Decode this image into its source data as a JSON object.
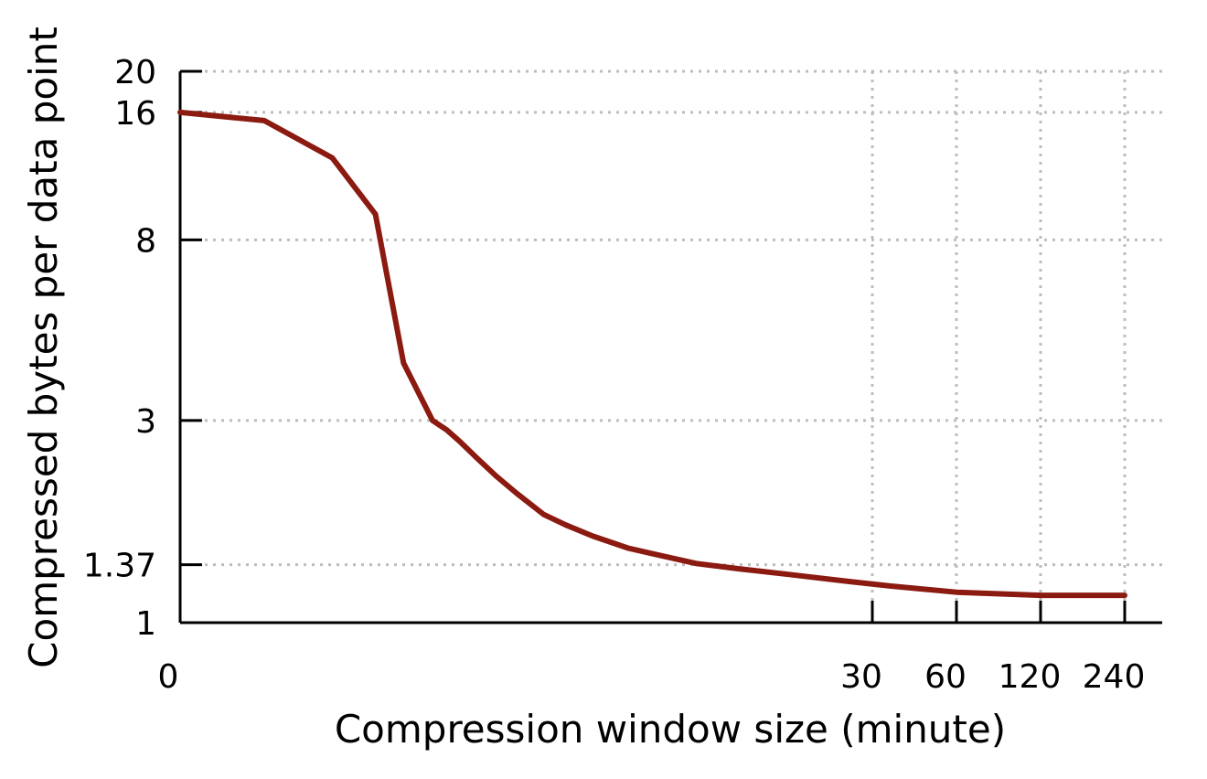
{
  "chart_data": {
    "type": "line",
    "xlabel": "Compression window size (minute)",
    "ylabel": "Compressed bytes per data point",
    "x_scale": "log",
    "y_scale": "log",
    "xlim": [
      0.1,
      350
    ],
    "ylim": [
      1,
      20
    ],
    "x_ticks": [
      {
        "value": 0.1,
        "label": "0"
      },
      {
        "value": 30,
        "label": "30"
      },
      {
        "value": 60,
        "label": "60"
      },
      {
        "value": 120,
        "label": "120"
      },
      {
        "value": 240,
        "label": "240"
      }
    ],
    "y_ticks": [
      {
        "value": 1,
        "label": "1"
      },
      {
        "value": 1.37,
        "label": "1.37"
      },
      {
        "value": 3,
        "label": "3"
      },
      {
        "value": 8,
        "label": "8"
      },
      {
        "value": 16,
        "label": "16"
      },
      {
        "value": 20,
        "label": "20"
      }
    ],
    "x_grid_at": [
      30,
      60,
      120,
      240
    ],
    "y_grid_at": [
      1.37,
      3,
      8,
      16,
      20
    ],
    "grid": true,
    "legend": "none",
    "series": [
      {
        "color": "#8b1a10",
        "points": [
          [
            0.1,
            16
          ],
          [
            0.2,
            15.3
          ],
          [
            0.35,
            12.5
          ],
          [
            0.5,
            9.2
          ],
          [
            0.63,
            4.1
          ],
          [
            0.8,
            3.0
          ],
          [
            0.9,
            2.85
          ],
          [
            1.0,
            2.68
          ],
          [
            1.15,
            2.45
          ],
          [
            1.35,
            2.22
          ],
          [
            1.6,
            2.02
          ],
          [
            2.0,
            1.8
          ],
          [
            2.4,
            1.7
          ],
          [
            3.0,
            1.6
          ],
          [
            4.0,
            1.5
          ],
          [
            5.0,
            1.45
          ],
          [
            7.0,
            1.38
          ],
          [
            10.0,
            1.34
          ],
          [
            15.0,
            1.3
          ],
          [
            25.0,
            1.25
          ],
          [
            35.0,
            1.22
          ],
          [
            60.0,
            1.18
          ],
          [
            120.0,
            1.16
          ],
          [
            240.0,
            1.16
          ]
        ]
      }
    ]
  }
}
